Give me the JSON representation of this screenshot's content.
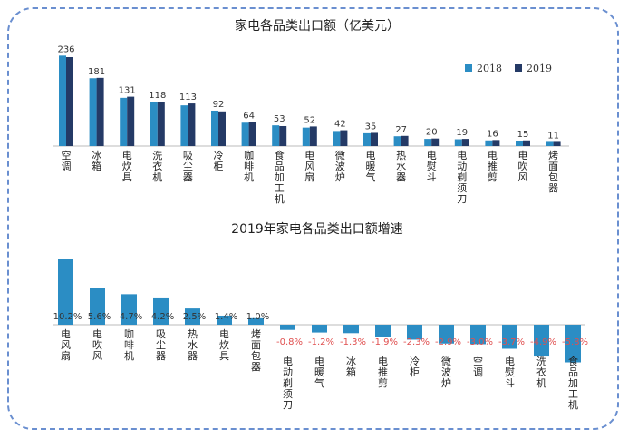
{
  "colors": {
    "series_2018": "#2b8dc4",
    "series_2019": "#243a66",
    "growth_bar": "#2b8dc4",
    "positive_label": "#333333",
    "negative_label": "#e05050",
    "frame_border": "#6a8fd0"
  },
  "chart_data": [
    {
      "type": "bar",
      "title": "家电各品类出口额（亿美元）",
      "categories": [
        "空调",
        "冰箱",
        "电炊具",
        "洗衣机",
        "吸尘器",
        "冷柜",
        "咖啡机",
        "食品加工机",
        "电风扇",
        "微波炉",
        "电暖气",
        "热水器",
        "电熨斗",
        "电动剃须刀",
        "电推剪",
        "电吹风",
        "烤面包器"
      ],
      "series": [
        {
          "name": "2018",
          "values": [
            240,
            180,
            128,
            116,
            108,
            94,
            62,
            55,
            49,
            40,
            34,
            26,
            19,
            18,
            15,
            13,
            11
          ]
        },
        {
          "name": "2019",
          "values": [
            236,
            181,
            131,
            118,
            113,
            92,
            64,
            53,
            52,
            42,
            35,
            27,
            20,
            19,
            16,
            15,
            11
          ]
        }
      ],
      "data_labels": [
        "236",
        "181",
        "131",
        "118",
        "113",
        "92",
        "64",
        "53",
        "52",
        "42",
        "35",
        "27",
        "20",
        "19",
        "16",
        "15",
        "11"
      ],
      "ylim": [
        0,
        260
      ],
      "legend": "right",
      "grid": false
    },
    {
      "type": "bar",
      "title": "2019年家电各品类出口额增速",
      "categories": [
        "电风扇",
        "电吹风",
        "咖啡机",
        "吸尘器",
        "热水器",
        "电炊具",
        "烤面包器",
        "电动剃须刀",
        "电暖气",
        "冰箱",
        "电推剪",
        "冷柜",
        "微波炉",
        "空调",
        "电熨斗",
        "洗衣机",
        "食品加工机"
      ],
      "values": [
        10.2,
        5.6,
        4.7,
        4.2,
        2.5,
        1.4,
        1.0,
        -0.8,
        -1.2,
        -1.3,
        -1.9,
        -2.3,
        -2.9,
        -3.0,
        -3.7,
        -4.9,
        -5.8
      ],
      "data_labels": [
        "10.2%",
        "5.6%",
        "4.7%",
        "4.2%",
        "2.5%",
        "1.4%",
        "1.0%",
        "-0.8%",
        "-1.2%",
        "-1.3%",
        "-1.9%",
        "-2.3%",
        "-2.9%",
        "-3.0%",
        "-3.7%",
        "-4.9%",
        "-5.8%"
      ],
      "ylim": [
        -6,
        11
      ],
      "grid": false
    }
  ]
}
